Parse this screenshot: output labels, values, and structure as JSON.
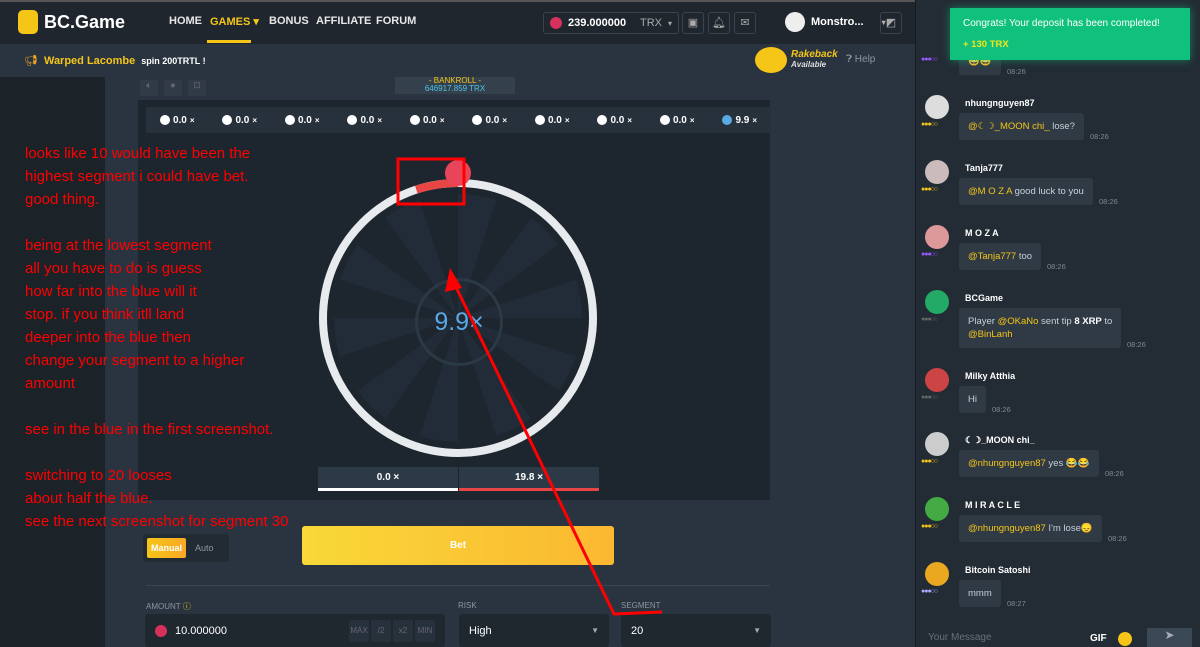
{
  "header": {
    "brand": "BC.Game",
    "nav": [
      "HOME",
      "GAMES",
      "BONUS",
      "AFFILIATE",
      "FORUM"
    ],
    "active_nav": "GAMES",
    "balance": "239.000000",
    "currency": "TRX",
    "username": "Monstro..."
  },
  "ticker": {
    "name": "Warped Lacombe",
    "text": "spin 200TRTL !"
  },
  "rakeback": {
    "title": "Rakeback",
    "sub": "Available"
  },
  "help": "Help",
  "bankroll": {
    "label": "- BANKROLL -",
    "value": "646917.859 TRX"
  },
  "multipliers": [
    {
      "label": "0.0",
      "color": "#ffffff"
    },
    {
      "label": "0.0",
      "color": "#ffffff"
    },
    {
      "label": "0.0",
      "color": "#ffffff"
    },
    {
      "label": "0.0",
      "color": "#ffffff"
    },
    {
      "label": "0.0",
      "color": "#ffffff"
    },
    {
      "label": "0.0",
      "color": "#ffffff"
    },
    {
      "label": "0.0",
      "color": "#ffffff"
    },
    {
      "label": "0.0",
      "color": "#ffffff"
    },
    {
      "label": "0.0",
      "color": "#ffffff"
    },
    {
      "label": "9.9",
      "color": "#5aa9e6"
    }
  ],
  "wheel": {
    "center_value": "9.9×",
    "results": [
      {
        "label": "0.0 ×",
        "color": "#ffffff"
      },
      {
        "label": "19.8 ×",
        "color": "#e84545"
      }
    ]
  },
  "controls": {
    "manual": "Manual",
    "auto": "Auto",
    "bet": "Bet",
    "amount_label": "AMOUNT",
    "amount": "10.000000",
    "amount_btns": [
      "MAX",
      "/2",
      "x2",
      "MIN"
    ],
    "risk_label": "RISK",
    "risk": "High",
    "segment_label": "SEGMENT",
    "segment": "20"
  },
  "annotation": "looks like 10 would have been the\nhighest segment i could have bet.\ngood thing.\n\nbeing at the lowest segment\nall you have to do is guess\nhow far into the blue will it\nstop. if you think itll land\ndeeper into the blue then\nchange your segment to a higher\namount\n\nsee in the blue in the first screenshot.\n\nswitching to 20 looses\nabout half the blue.\nsee the next screenshot for segment 30",
  "toast": {
    "title": "Congrats! Your deposit has been completed!",
    "amount": "+ 130 TRX"
  },
  "chat": {
    "messages": [
      {
        "user": "",
        "mention": "",
        "text": "😀😀",
        "time": "08:26"
      },
      {
        "user": "nhungnguyen87",
        "mention": "@☾☽_MOON chi_",
        "text": " lose?",
        "time": "08:26"
      },
      {
        "user": "Tanja777",
        "mention": "@M O Z A",
        "text": " good luck to you",
        "time": "08:26"
      },
      {
        "user": "M O Z A",
        "mention": "@Tanja777",
        "text": " too",
        "time": "08:26"
      },
      {
        "user": "BCGame",
        "mention": "",
        "text": "Player @OKaNo sent tip 8 XRP to @BinLanh",
        "time": "08:26"
      },
      {
        "user": "Milky Atthia",
        "mention": "",
        "text": "Hi",
        "time": "08:26"
      },
      {
        "user": "☾☽_MOON chi_",
        "mention": "@nhungnguyen87",
        "text": " yes 😂😂",
        "time": "08:26"
      },
      {
        "user": "M I R A C L E",
        "mention": "@nhungnguyen87",
        "text": " I'm lose😞",
        "time": "08:26"
      },
      {
        "user": "Bitcoin Satoshi",
        "mention": "",
        "text": "mmm",
        "time": "08:27"
      }
    ],
    "placeholder": "Your Message",
    "gif": "GIF"
  }
}
